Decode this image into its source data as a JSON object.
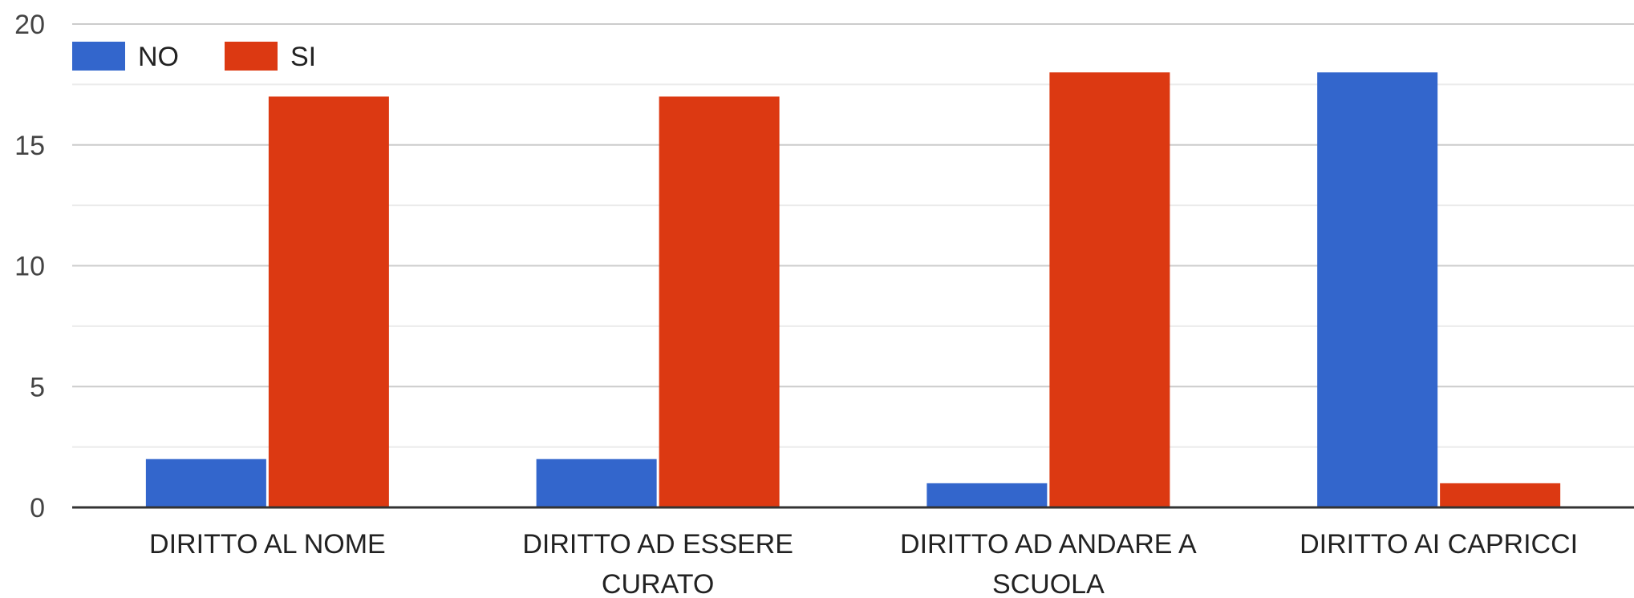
{
  "chart_data": {
    "type": "bar",
    "categories": [
      [
        "DIRITTO AL NOME"
      ],
      [
        "DIRITTO AD ESSERE",
        "CURATO"
      ],
      [
        "DIRITTO AD ANDARE A",
        "SCUOLA"
      ],
      [
        "DIRITTO AI CAPRICCI"
      ]
    ],
    "series": [
      {
        "name": "NO",
        "color": "#3366cc",
        "values": [
          2,
          2,
          1,
          18
        ]
      },
      {
        "name": "SI",
        "color": "#dc3912",
        "values": [
          17,
          17,
          18,
          1
        ]
      }
    ],
    "ylim": [
      0,
      20
    ],
    "yticks": [
      0,
      5,
      10,
      15,
      20
    ],
    "grid": true,
    "legend_position": "top-left"
  }
}
